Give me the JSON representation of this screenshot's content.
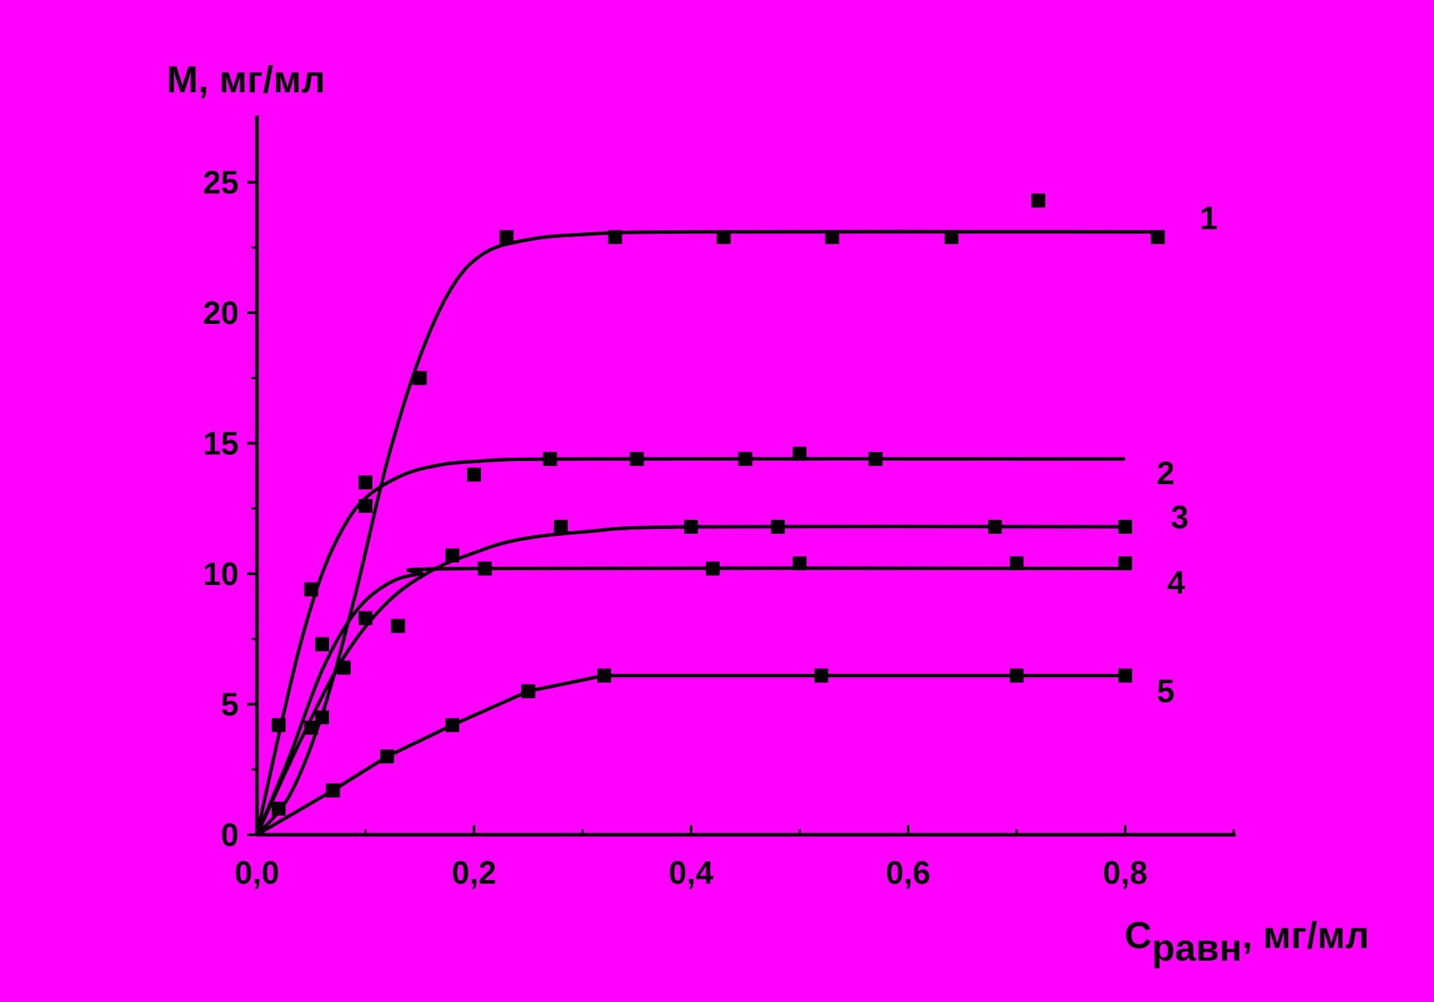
{
  "chart_data": {
    "type": "scatter",
    "xlabel_main": "C",
    "xlabel_sub": "равн",
    "xlabel_rest": ", мг/мл",
    "ylabel": "M, мг/мл",
    "xlim": [
      0,
      0.9
    ],
    "ylim": [
      0,
      27.5
    ],
    "x_ticks": [
      0,
      0.2,
      0.4,
      0.6,
      0.8
    ],
    "x_tick_labels": [
      "0,0",
      "0,2",
      "0,4",
      "0,6",
      "0,8"
    ],
    "y_ticks": [
      0,
      5,
      10,
      15,
      20,
      25
    ],
    "y_tick_labels": [
      "0",
      "5",
      "10",
      "15",
      "20",
      "25"
    ],
    "grid": false,
    "colors": {
      "background": "#FF00FF",
      "ink": "#000000"
    },
    "series": [
      {
        "label": "1",
        "points": [
          [
            0.02,
            1.0
          ],
          [
            0.05,
            4.1
          ],
          [
            0.06,
            7.3
          ],
          [
            0.08,
            6.4
          ],
          [
            0.1,
            13.5
          ],
          [
            0.15,
            17.5
          ],
          [
            0.23,
            22.9
          ],
          [
            0.33,
            22.9
          ],
          [
            0.43,
            22.9
          ],
          [
            0.53,
            22.9
          ],
          [
            0.64,
            22.9
          ],
          [
            0.72,
            24.3
          ],
          [
            0.83,
            22.9
          ]
        ],
        "fit": [
          [
            0,
            0
          ],
          [
            0.03,
            1.5
          ],
          [
            0.06,
            4.6
          ],
          [
            0.09,
            9.1
          ],
          [
            0.12,
            14.3
          ],
          [
            0.15,
            18.3
          ],
          [
            0.18,
            21.0
          ],
          [
            0.21,
            22.3
          ],
          [
            0.25,
            22.8
          ],
          [
            0.3,
            23.0
          ],
          [
            0.4,
            23.1
          ],
          [
            0.83,
            23.1
          ]
        ]
      },
      {
        "label": "2",
        "points": [
          [
            0.02,
            4.2
          ],
          [
            0.05,
            9.4
          ],
          [
            0.06,
            7.3
          ],
          [
            0.1,
            12.6
          ],
          [
            0.2,
            13.8
          ],
          [
            0.27,
            14.4
          ],
          [
            0.35,
            14.4
          ],
          [
            0.45,
            14.4
          ],
          [
            0.5,
            14.6
          ],
          [
            0.57,
            14.4
          ]
        ],
        "fit": [
          [
            0,
            0
          ],
          [
            0.02,
            3.8
          ],
          [
            0.04,
            7.3
          ],
          [
            0.06,
            10.0
          ],
          [
            0.08,
            11.8
          ],
          [
            0.1,
            12.9
          ],
          [
            0.13,
            13.7
          ],
          [
            0.16,
            14.1
          ],
          [
            0.2,
            14.3
          ],
          [
            0.3,
            14.4
          ],
          [
            0.8,
            14.4
          ]
        ]
      },
      {
        "label": "3",
        "points": [
          [
            0.06,
            4.5
          ],
          [
            0.1,
            8.3
          ],
          [
            0.13,
            8.0
          ],
          [
            0.18,
            10.7
          ],
          [
            0.28,
            11.8
          ],
          [
            0.4,
            11.8
          ],
          [
            0.48,
            11.8
          ],
          [
            0.68,
            11.8
          ],
          [
            0.8,
            11.8
          ]
        ],
        "fit": [
          [
            0,
            0
          ],
          [
            0.04,
            3.6
          ],
          [
            0.08,
            6.8
          ],
          [
            0.12,
            8.9
          ],
          [
            0.16,
            10.1
          ],
          [
            0.2,
            10.8
          ],
          [
            0.24,
            11.3
          ],
          [
            0.3,
            11.6
          ],
          [
            0.4,
            11.8
          ],
          [
            0.8,
            11.8
          ]
        ]
      },
      {
        "label": "4",
        "points": [
          [
            0.21,
            10.2
          ],
          [
            0.42,
            10.2
          ],
          [
            0.5,
            10.4
          ],
          [
            0.7,
            10.4
          ],
          [
            0.8,
            10.4
          ]
        ],
        "fit": [
          [
            0,
            0
          ],
          [
            0.03,
            3.0
          ],
          [
            0.06,
            6.3
          ],
          [
            0.09,
            8.5
          ],
          [
            0.12,
            9.6
          ],
          [
            0.15,
            10.0
          ],
          [
            0.2,
            10.2
          ],
          [
            0.8,
            10.2
          ]
        ]
      },
      {
        "label": "5",
        "points": [
          [
            0.07,
            1.7
          ],
          [
            0.12,
            3.0
          ],
          [
            0.18,
            4.2
          ],
          [
            0.25,
            5.5
          ],
          [
            0.32,
            6.1
          ],
          [
            0.52,
            6.1
          ],
          [
            0.7,
            6.1
          ],
          [
            0.8,
            6.1
          ]
        ],
        "fit": [
          [
            0,
            0
          ],
          [
            0.07,
            1.7
          ],
          [
            0.12,
            3.0
          ],
          [
            0.18,
            4.2
          ],
          [
            0.25,
            5.5
          ],
          [
            0.32,
            6.1
          ],
          [
            0.52,
            6.1
          ],
          [
            0.7,
            6.1
          ],
          [
            0.8,
            6.1
          ]
        ]
      }
    ]
  }
}
